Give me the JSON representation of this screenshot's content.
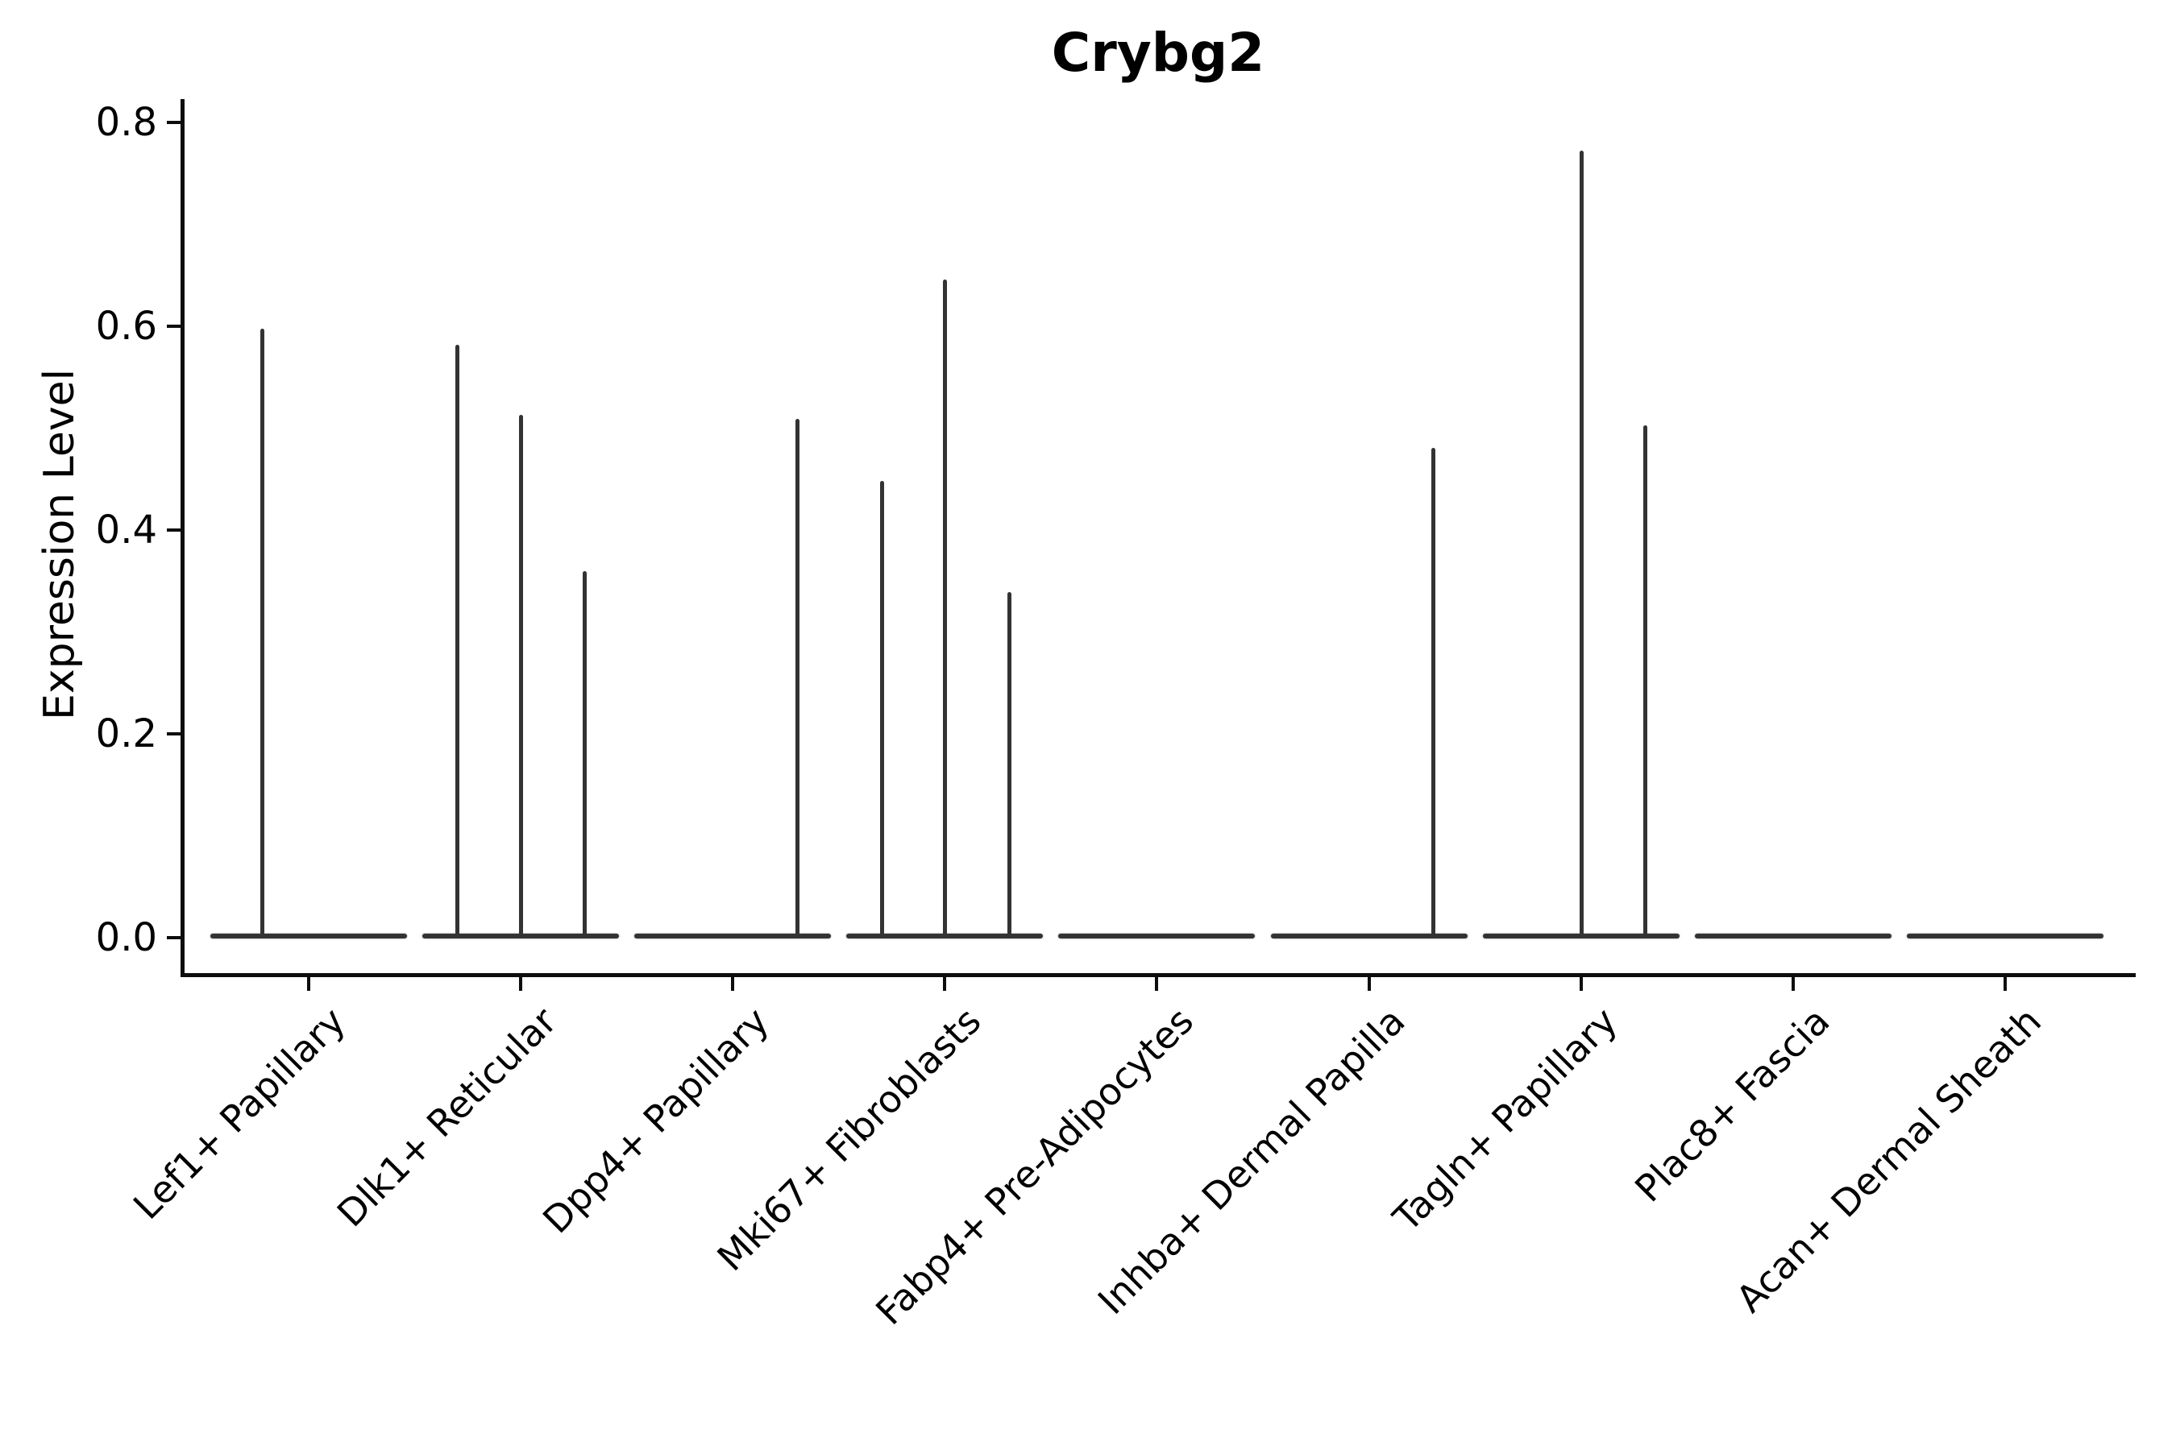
{
  "title": "Crybg2",
  "chart_data": {
    "type": "violin",
    "title": "Crybg2",
    "xlabel": "",
    "ylabel": "Expression Level",
    "ylim": [
      0.0,
      0.82
    ],
    "yticks": [
      0.0,
      0.2,
      0.4,
      0.6,
      0.8
    ],
    "ytick_labels": [
      "0.0",
      "0.2",
      "0.4",
      "0.6",
      "0.8"
    ],
    "grid": false,
    "legend_position": "none",
    "categories": [
      "Lef1+ Papillary",
      "Dlk1+ Reticular",
      "Dpp4+ Papillary",
      "Mki67+ Fibroblasts",
      "Fabp4+ Pre-Adipocytes",
      "Inhba+ Dermal Papilla",
      "Tagln+ Papillary",
      "Plac8+ Fascia",
      "Acan+ Dermal Sheath"
    ],
    "violins": [
      {
        "category": "Lef1+ Papillary",
        "body_value": 0.0,
        "spikes": [
          {
            "pos": -0.217,
            "max": 0.598
          }
        ]
      },
      {
        "category": "Dlk1+ Reticular",
        "body_value": 0.0,
        "spikes": [
          {
            "pos": -0.297,
            "max": 0.582
          },
          {
            "pos": 0.002,
            "max": 0.513
          },
          {
            "pos": 0.303,
            "max": 0.36
          }
        ]
      },
      {
        "category": "Dpp4+ Papillary",
        "body_value": 0.0,
        "spikes": [
          {
            "pos": 0.304,
            "max": 0.509
          }
        ]
      },
      {
        "category": "Mki67+ Fibroblasts",
        "body_value": 0.0,
        "spikes": [
          {
            "pos": -0.297,
            "max": 0.448
          },
          {
            "pos": 0.002,
            "max": 0.646
          },
          {
            "pos": 0.304,
            "max": 0.339
          }
        ]
      },
      {
        "category": "Fabp4+ Pre-Adipocytes",
        "body_value": 0.0,
        "spikes": []
      },
      {
        "category": "Inhba+ Dermal Papilla",
        "body_value": 0.0,
        "spikes": [
          {
            "pos": 0.304,
            "max": 0.481
          }
        ]
      },
      {
        "category": "Tagln+ Papillary",
        "body_value": 0.0,
        "spikes": [
          {
            "pos": 0.002,
            "max": 0.772
          },
          {
            "pos": 0.304,
            "max": 0.503
          }
        ]
      },
      {
        "category": "Plac8+ Fascia",
        "body_value": 0.0,
        "spikes": []
      },
      {
        "category": "Acan+ Dermal Sheath",
        "body_value": 0.0,
        "spikes": []
      }
    ],
    "colors": {
      "violin_line": "#333333",
      "axis": "#0d0d0d",
      "text": "#000000",
      "background": "#ffffff"
    }
  }
}
